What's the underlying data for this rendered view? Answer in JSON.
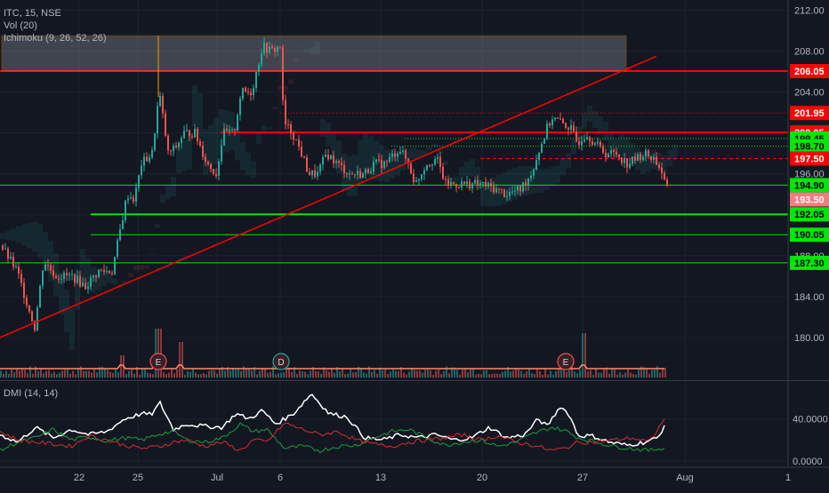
{
  "legend": {
    "symbol_line": "ITC, 15, NSE",
    "vol_line": "Vol (20)",
    "ichimoku_line": "Ichimoku (9, 26, 52, 26)",
    "dmi_line": "DMI (14, 14)"
  },
  "colors": {
    "background": "#131722",
    "grid": "#1e222d",
    "up": "#26a69a",
    "down": "#ef5350",
    "red_line": "#ff0000",
    "green_line": "#00e600",
    "orange_line": "#ff9800",
    "dmi_white": "#ffffff",
    "dmi_green": "#1b9e3e",
    "dmi_red": "#d32f2f",
    "volume_ma": "#ff8a65"
  },
  "chart_data": [
    {
      "type": "line",
      "title": "",
      "subtype": "candlestick price chart",
      "x_ticks": [
        "22",
        "25",
        "Jul",
        "6",
        "13",
        "20",
        "27",
        "Aug",
        "1"
      ],
      "ylim": [
        176,
        213
      ],
      "y_ticks": [
        212,
        208,
        204,
        200,
        196,
        192,
        188,
        184,
        180
      ],
      "y_tick_labels": [
        "212.00",
        "208.00",
        "204.00",
        "200.00",
        "196.00",
        "192.00",
        "188.00",
        "184.00",
        "180.00"
      ],
      "grid": true,
      "price_series": {
        "name": "ITC",
        "anchors": [
          [
            0,
            189
          ],
          [
            18,
            186.5
          ],
          [
            38,
            181
          ],
          [
            48,
            187.5
          ],
          [
            62,
            186
          ],
          [
            80,
            186
          ],
          [
            95,
            185
          ],
          [
            110,
            186.5
          ],
          [
            125,
            186.5
          ],
          [
            133,
            190
          ],
          [
            142,
            194
          ],
          [
            150,
            193.5
          ],
          [
            158,
            197
          ],
          [
            170,
            198
          ],
          [
            178,
            204
          ],
          [
            188,
            198
          ],
          [
            196,
            198.5
          ],
          [
            206,
            200
          ],
          [
            218,
            200
          ],
          [
            232,
            197
          ],
          [
            242,
            196
          ],
          [
            250,
            200
          ],
          [
            262,
            200
          ],
          [
            270,
            204
          ],
          [
            282,
            204
          ],
          [
            294,
            208.5
          ],
          [
            304,
            208
          ],
          [
            314,
            208.5
          ],
          [
            318,
            201
          ],
          [
            328,
            200
          ],
          [
            338,
            198
          ],
          [
            346,
            196
          ],
          [
            356,
            196
          ],
          [
            366,
            198
          ],
          [
            378,
            197
          ],
          [
            392,
            196
          ],
          [
            408,
            196
          ],
          [
            420,
            197
          ],
          [
            432,
            197
          ],
          [
            448,
            198.5
          ],
          [
            458,
            197
          ],
          [
            466,
            195
          ],
          [
            478,
            197
          ],
          [
            490,
            197.5
          ],
          [
            500,
            195
          ],
          [
            512,
            195
          ],
          [
            524,
            195
          ],
          [
            540,
            195
          ],
          [
            556,
            194.5
          ],
          [
            568,
            194
          ],
          [
            584,
            194.5
          ],
          [
            596,
            196
          ],
          [
            604,
            198
          ],
          [
            614,
            200.5
          ],
          [
            620,
            201.5
          ],
          [
            630,
            201
          ],
          [
            640,
            200.5
          ],
          [
            648,
            199
          ],
          [
            658,
            200
          ],
          [
            668,
            199
          ],
          [
            680,
            198
          ],
          [
            692,
            198
          ],
          [
            704,
            197
          ],
          [
            714,
            197.5
          ],
          [
            724,
            198
          ],
          [
            734,
            197.5
          ],
          [
            742,
            196.5
          ],
          [
            748,
            194.5
          ]
        ]
      },
      "horizontal_levels": [
        {
          "value": 206.05,
          "label": "206.05",
          "kind": "resistance",
          "color": "#ff0000"
        },
        {
          "value": 201.95,
          "label": "201.95",
          "kind": "resistance",
          "color": "#ff0000"
        },
        {
          "value": 200.05,
          "label": "200.05",
          "kind": "resistance",
          "color": "#ff0000"
        },
        {
          "value": 199.45,
          "label": "199.45",
          "kind": "support",
          "color": "#00e600"
        },
        {
          "value": 198.7,
          "label": "198.70",
          "kind": "support",
          "color": "#00e600"
        },
        {
          "value": 197.5,
          "label": "197.50",
          "kind": "resistance",
          "color": "#ff0000"
        },
        {
          "value": 194.9,
          "label": "194.90",
          "kind": "support",
          "color": "#00e600"
        },
        {
          "value": 193.5,
          "label": "193.50",
          "kind": "current-price",
          "color": "#ef5350"
        },
        {
          "value": 192.05,
          "label": "192.05",
          "kind": "support",
          "color": "#00e600"
        },
        {
          "value": 190.05,
          "label": "190.05",
          "kind": "support",
          "color": "#00e600"
        },
        {
          "value": 187.3,
          "label": "187.30",
          "kind": "support",
          "color": "#00e600"
        }
      ],
      "rectangle_zone": {
        "top": 209.5,
        "bottom": 206.05,
        "color": "#ff9800"
      },
      "trendline": {
        "from": [
          0,
          180
        ],
        "to": [
          738,
          207.5
        ],
        "color": "#ff0000"
      },
      "event_markers": [
        {
          "label": "E",
          "kind": "earnings"
        },
        {
          "label": "D",
          "kind": "dividend"
        },
        {
          "label": "E",
          "kind": "earnings"
        }
      ]
    },
    {
      "type": "line",
      "title": "",
      "subtype": "DMI indicator pane",
      "ylim": [
        -5,
        75
      ],
      "y_ticks": [
        40,
        0
      ],
      "y_tick_labels": [
        "40.0000",
        "0.0000"
      ],
      "series": [
        {
          "name": "",
          "color": "#ffffff",
          "anchors": [
            [
              0,
              25
            ],
            [
              20,
              18
            ],
            [
              40,
              32
            ],
            [
              60,
              22
            ],
            [
              80,
              30
            ],
            [
              100,
              25
            ],
            [
              120,
              28
            ],
            [
              140,
              40
            ],
            [
              160,
              45
            ],
            [
              170,
              44
            ],
            [
              180,
              55
            ],
            [
              195,
              30
            ],
            [
              210,
              35
            ],
            [
              230,
              33
            ],
            [
              250,
              32
            ],
            [
              265,
              45
            ],
            [
              280,
              40
            ],
            [
              295,
              48
            ],
            [
              310,
              35
            ],
            [
              330,
              45
            ],
            [
              350,
              64
            ],
            [
              370,
              45
            ],
            [
              390,
              42
            ],
            [
              410,
              22
            ],
            [
              430,
              20
            ],
            [
              450,
              25
            ],
            [
              470,
              22
            ],
            [
              490,
              25
            ],
            [
              510,
              20
            ],
            [
              530,
              22
            ],
            [
              550,
              32
            ],
            [
              570,
              22
            ],
            [
              590,
              25
            ],
            [
              605,
              40
            ],
            [
              615,
              33
            ],
            [
              630,
              52
            ],
            [
              640,
              44
            ],
            [
              650,
              24
            ],
            [
              665,
              24
            ],
            [
              685,
              18
            ],
            [
              705,
              15
            ],
            [
              725,
              18
            ],
            [
              740,
              22
            ],
            [
              748,
              36
            ]
          ]
        },
        {
          "name": "",
          "color": "#1b9e3e",
          "anchors": [
            [
              0,
              10
            ],
            [
              20,
              18
            ],
            [
              40,
              22
            ],
            [
              60,
              30
            ],
            [
              80,
              20
            ],
            [
              100,
              23
            ],
            [
              120,
              19
            ],
            [
              140,
              22
            ],
            [
              160,
              20
            ],
            [
              180,
              26
            ],
            [
              195,
              28
            ],
            [
              210,
              20
            ],
            [
              230,
              18
            ],
            [
              250,
              22
            ],
            [
              270,
              35
            ],
            [
              285,
              28
            ],
            [
              300,
              30
            ],
            [
              320,
              12
            ],
            [
              340,
              14
            ],
            [
              360,
              10
            ],
            [
              380,
              14
            ],
            [
              400,
              15
            ],
            [
              420,
              22
            ],
            [
              440,
              28
            ],
            [
              460,
              30
            ],
            [
              480,
              22
            ],
            [
              500,
              15
            ],
            [
              520,
              18
            ],
            [
              540,
              20
            ],
            [
              560,
              14
            ],
            [
              580,
              18
            ],
            [
              600,
              26
            ],
            [
              620,
              32
            ],
            [
              635,
              29
            ],
            [
              650,
              22
            ],
            [
              670,
              18
            ],
            [
              690,
              14
            ],
            [
              710,
              12
            ],
            [
              730,
              10
            ],
            [
              748,
              13
            ]
          ]
        },
        {
          "name": "",
          "color": "#d32f2f",
          "anchors": [
            [
              0,
              28
            ],
            [
              20,
              20
            ],
            [
              40,
              18
            ],
            [
              60,
              16
            ],
            [
              80,
              14
            ],
            [
              100,
              24
            ],
            [
              120,
              20
            ],
            [
              140,
              15
            ],
            [
              160,
              12
            ],
            [
              180,
              14
            ],
            [
              195,
              18
            ],
            [
              210,
              20
            ],
            [
              230,
              14
            ],
            [
              250,
              18
            ],
            [
              270,
              10
            ],
            [
              285,
              20
            ],
            [
              300,
              18
            ],
            [
              320,
              36
            ],
            [
              340,
              30
            ],
            [
              360,
              25
            ],
            [
              380,
              28
            ],
            [
              400,
              20
            ],
            [
              420,
              16
            ],
            [
              440,
              14
            ],
            [
              460,
              18
            ],
            [
              480,
              20
            ],
            [
              500,
              22
            ],
            [
              520,
              25
            ],
            [
              540,
              20
            ],
            [
              560,
              24
            ],
            [
              580,
              18
            ],
            [
              600,
              15
            ],
            [
              620,
              10
            ],
            [
              635,
              12
            ],
            [
              650,
              18
            ],
            [
              670,
              18
            ],
            [
              690,
              20
            ],
            [
              710,
              22
            ],
            [
              730,
              18
            ],
            [
              748,
              41
            ]
          ]
        }
      ]
    }
  ]
}
